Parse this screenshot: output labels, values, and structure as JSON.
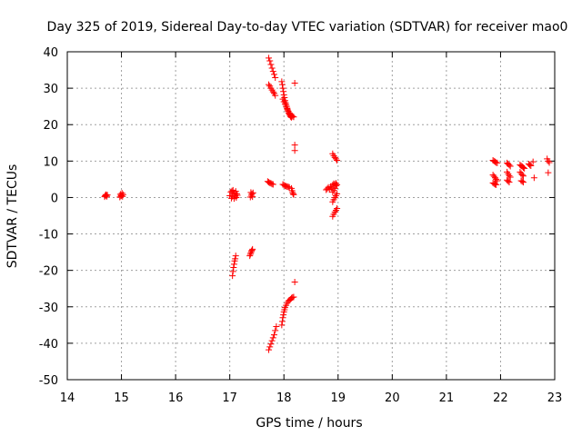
{
  "chart_data": {
    "type": "scatter",
    "title": "Day 325 of 2019, Sidereal Day-to-day VTEC variation (SDTVAR) for receiver mao0",
    "xlabel": "GPS time / hours",
    "ylabel": "SDTVAR / TECUs",
    "xlim": [
      14,
      23
    ],
    "ylim": [
      -50,
      40
    ],
    "xticks": [
      14,
      15,
      16,
      17,
      18,
      19,
      20,
      21,
      22,
      23
    ],
    "yticks": [
      -50,
      -40,
      -30,
      -20,
      -10,
      0,
      10,
      20,
      30,
      40
    ],
    "grid": true,
    "marker": "+",
    "color": "#ff0000",
    "series": [
      {
        "name": "SDTVAR",
        "points": [
          [
            14.69,
            0.2
          ],
          [
            14.7,
            0.5
          ],
          [
            14.71,
            0.8
          ],
          [
            14.72,
            0.6
          ],
          [
            14.73,
            0.3
          ],
          [
            14.74,
            0.7
          ],
          [
            14.97,
            0.1
          ],
          [
            14.98,
            0.9
          ],
          [
            14.99,
            0.4
          ],
          [
            15.0,
            0.6
          ],
          [
            15.01,
            1.2
          ],
          [
            15.02,
            0.3
          ],
          [
            15.03,
            0.8
          ],
          [
            17.0,
            0.5
          ],
          [
            17.02,
            1.5
          ],
          [
            17.03,
            -0.2
          ],
          [
            17.04,
            1.8
          ],
          [
            17.05,
            0.3
          ],
          [
            17.06,
            2.0
          ],
          [
            17.07,
            0.9
          ],
          [
            17.08,
            -0.3
          ],
          [
            17.09,
            1.2
          ],
          [
            17.1,
            0.4
          ],
          [
            17.11,
            1.7
          ],
          [
            17.12,
            0.0
          ],
          [
            17.13,
            1.0
          ],
          [
            17.14,
            0.6
          ],
          [
            17.05,
            -21.5
          ],
          [
            17.06,
            -20.3
          ],
          [
            17.07,
            -19.2
          ],
          [
            17.08,
            -18.3
          ],
          [
            17.09,
            -17.4
          ],
          [
            17.1,
            -16.8
          ],
          [
            17.11,
            -16.0
          ],
          [
            17.38,
            0.1
          ],
          [
            17.39,
            1.4
          ],
          [
            17.4,
            0.6
          ],
          [
            17.41,
            1.0
          ],
          [
            17.42,
            0.2
          ],
          [
            17.43,
            1.3
          ],
          [
            17.37,
            -16.0
          ],
          [
            17.38,
            -15.6
          ],
          [
            17.39,
            -15.2
          ],
          [
            17.4,
            -14.8
          ],
          [
            17.41,
            -14.5
          ],
          [
            17.42,
            -14.2
          ],
          [
            17.7,
            4.4
          ],
          [
            17.72,
            4.2
          ],
          [
            17.74,
            4.0
          ],
          [
            17.76,
            3.9
          ],
          [
            17.78,
            3.7
          ],
          [
            17.8,
            3.6
          ],
          [
            17.72,
            38.3
          ],
          [
            17.74,
            37.5
          ],
          [
            17.76,
            36.5
          ],
          [
            17.78,
            35.5
          ],
          [
            17.8,
            34.6
          ],
          [
            17.82,
            33.8
          ],
          [
            17.84,
            32.9
          ],
          [
            17.72,
            31.0
          ],
          [
            17.74,
            30.6
          ],
          [
            17.76,
            30.0
          ],
          [
            17.78,
            29.5
          ],
          [
            17.8,
            29.0
          ],
          [
            17.82,
            28.6
          ],
          [
            17.84,
            28.0
          ],
          [
            17.72,
            -41.8
          ],
          [
            17.74,
            -41.0
          ],
          [
            17.76,
            -40.2
          ],
          [
            17.78,
            -39.3
          ],
          [
            17.8,
            -38.5
          ],
          [
            17.82,
            -37.7
          ],
          [
            17.84,
            -36.5
          ],
          [
            17.86,
            -35.4
          ],
          [
            17.96,
            31.8
          ],
          [
            17.97,
            31.0
          ],
          [
            17.98,
            30.0
          ],
          [
            17.99,
            29.1
          ],
          [
            18.0,
            28.2
          ],
          [
            18.01,
            27.4
          ],
          [
            18.02,
            26.6
          ],
          [
            18.03,
            26.0
          ],
          [
            18.04,
            25.5
          ],
          [
            18.05,
            25.0
          ],
          [
            18.06,
            24.5
          ],
          [
            18.07,
            24.0
          ],
          [
            18.08,
            23.6
          ],
          [
            18.09,
            23.2
          ],
          [
            18.1,
            22.9
          ],
          [
            18.11,
            22.6
          ],
          [
            18.12,
            22.3
          ],
          [
            18.13,
            22.1
          ],
          [
            18.14,
            22.0
          ],
          [
            17.98,
            27.0
          ],
          [
            18.0,
            26.3
          ],
          [
            18.02,
            25.6
          ],
          [
            18.04,
            25.0
          ],
          [
            18.06,
            24.3
          ],
          [
            18.08,
            23.7
          ],
          [
            18.1,
            23.2
          ],
          [
            18.12,
            22.8
          ],
          [
            18.14,
            22.5
          ],
          [
            18.16,
            22.3
          ],
          [
            18.18,
            22.1
          ],
          [
            17.96,
            -35.0
          ],
          [
            17.97,
            -34.0
          ],
          [
            17.98,
            -33.0
          ],
          [
            17.99,
            -32.2
          ],
          [
            18.0,
            -31.4
          ],
          [
            18.01,
            -30.8
          ],
          [
            18.02,
            -30.2
          ],
          [
            18.04,
            -29.6
          ],
          [
            18.06,
            -29.0
          ],
          [
            18.08,
            -28.5
          ],
          [
            18.1,
            -28.2
          ],
          [
            18.12,
            -27.9
          ],
          [
            18.14,
            -27.6
          ],
          [
            18.16,
            -27.4
          ],
          [
            18.18,
            -27.3
          ],
          [
            17.98,
            3.6
          ],
          [
            18.0,
            3.4
          ],
          [
            18.02,
            3.2
          ],
          [
            18.04,
            3.1
          ],
          [
            18.06,
            3.0
          ],
          [
            18.08,
            2.9
          ],
          [
            18.1,
            2.8
          ],
          [
            18.14,
            2.5
          ],
          [
            18.15,
            1.9
          ],
          [
            18.16,
            1.4
          ],
          [
            18.17,
            1.0
          ],
          [
            18.18,
            0.8
          ],
          [
            18.2,
            31.4
          ],
          [
            18.2,
            14.4
          ],
          [
            18.2,
            12.9
          ],
          [
            18.2,
            -23.2
          ],
          [
            18.78,
            2.1
          ],
          [
            18.8,
            2.4
          ],
          [
            18.82,
            2.8
          ],
          [
            18.84,
            2.2
          ],
          [
            18.86,
            3.0
          ],
          [
            18.88,
            2.6
          ],
          [
            18.9,
            3.4
          ],
          [
            18.92,
            3.8
          ],
          [
            18.94,
            3.6
          ],
          [
            18.96,
            3.9
          ],
          [
            18.9,
            12.0
          ],
          [
            18.92,
            11.5
          ],
          [
            18.94,
            11.0
          ],
          [
            18.96,
            10.6
          ],
          [
            18.98,
            10.2
          ],
          [
            18.9,
            -5.2
          ],
          [
            18.92,
            -4.6
          ],
          [
            18.94,
            -4.0
          ],
          [
            18.96,
            -3.5
          ],
          [
            18.98,
            -3.0
          ],
          [
            18.9,
            -1.2
          ],
          [
            18.92,
            -0.6
          ],
          [
            18.94,
            0.0
          ],
          [
            18.96,
            0.5
          ],
          [
            18.98,
            1.0
          ],
          [
            18.9,
            1.5
          ],
          [
            18.92,
            2.0
          ],
          [
            18.94,
            2.5
          ],
          [
            18.96,
            3.2
          ],
          [
            18.98,
            3.5
          ],
          [
            21.86,
            10.2
          ],
          [
            21.88,
            10.0
          ],
          [
            21.9,
            9.8
          ],
          [
            21.92,
            9.6
          ],
          [
            21.94,
            9.5
          ],
          [
            21.86,
            6.2
          ],
          [
            21.88,
            5.8
          ],
          [
            21.9,
            5.4
          ],
          [
            21.92,
            5.0
          ],
          [
            21.94,
            4.6
          ],
          [
            21.86,
            4.0
          ],
          [
            21.88,
            3.8
          ],
          [
            21.9,
            3.6
          ],
          [
            21.92,
            3.5
          ],
          [
            22.12,
            9.5
          ],
          [
            22.14,
            9.2
          ],
          [
            22.16,
            8.9
          ],
          [
            22.18,
            8.6
          ],
          [
            22.12,
            7.0
          ],
          [
            22.14,
            6.5
          ],
          [
            22.16,
            6.0
          ],
          [
            22.18,
            5.6
          ],
          [
            22.12,
            4.8
          ],
          [
            22.14,
            4.5
          ],
          [
            22.16,
            4.2
          ],
          [
            22.36,
            9.0
          ],
          [
            22.38,
            8.7
          ],
          [
            22.4,
            8.5
          ],
          [
            22.42,
            8.2
          ],
          [
            22.44,
            8.0
          ],
          [
            22.36,
            7.0
          ],
          [
            22.38,
            6.6
          ],
          [
            22.4,
            6.2
          ],
          [
            22.42,
            5.9
          ],
          [
            22.38,
            4.6
          ],
          [
            22.4,
            4.4
          ],
          [
            22.42,
            4.2
          ],
          [
            22.52,
            9.2
          ],
          [
            22.54,
            8.9
          ],
          [
            22.56,
            8.7
          ],
          [
            22.6,
            9.8
          ],
          [
            22.62,
            5.4
          ],
          [
            22.86,
            10.6
          ],
          [
            22.88,
            10.0
          ],
          [
            22.9,
            9.6
          ],
          [
            22.88,
            6.8
          ]
        ]
      }
    ]
  }
}
